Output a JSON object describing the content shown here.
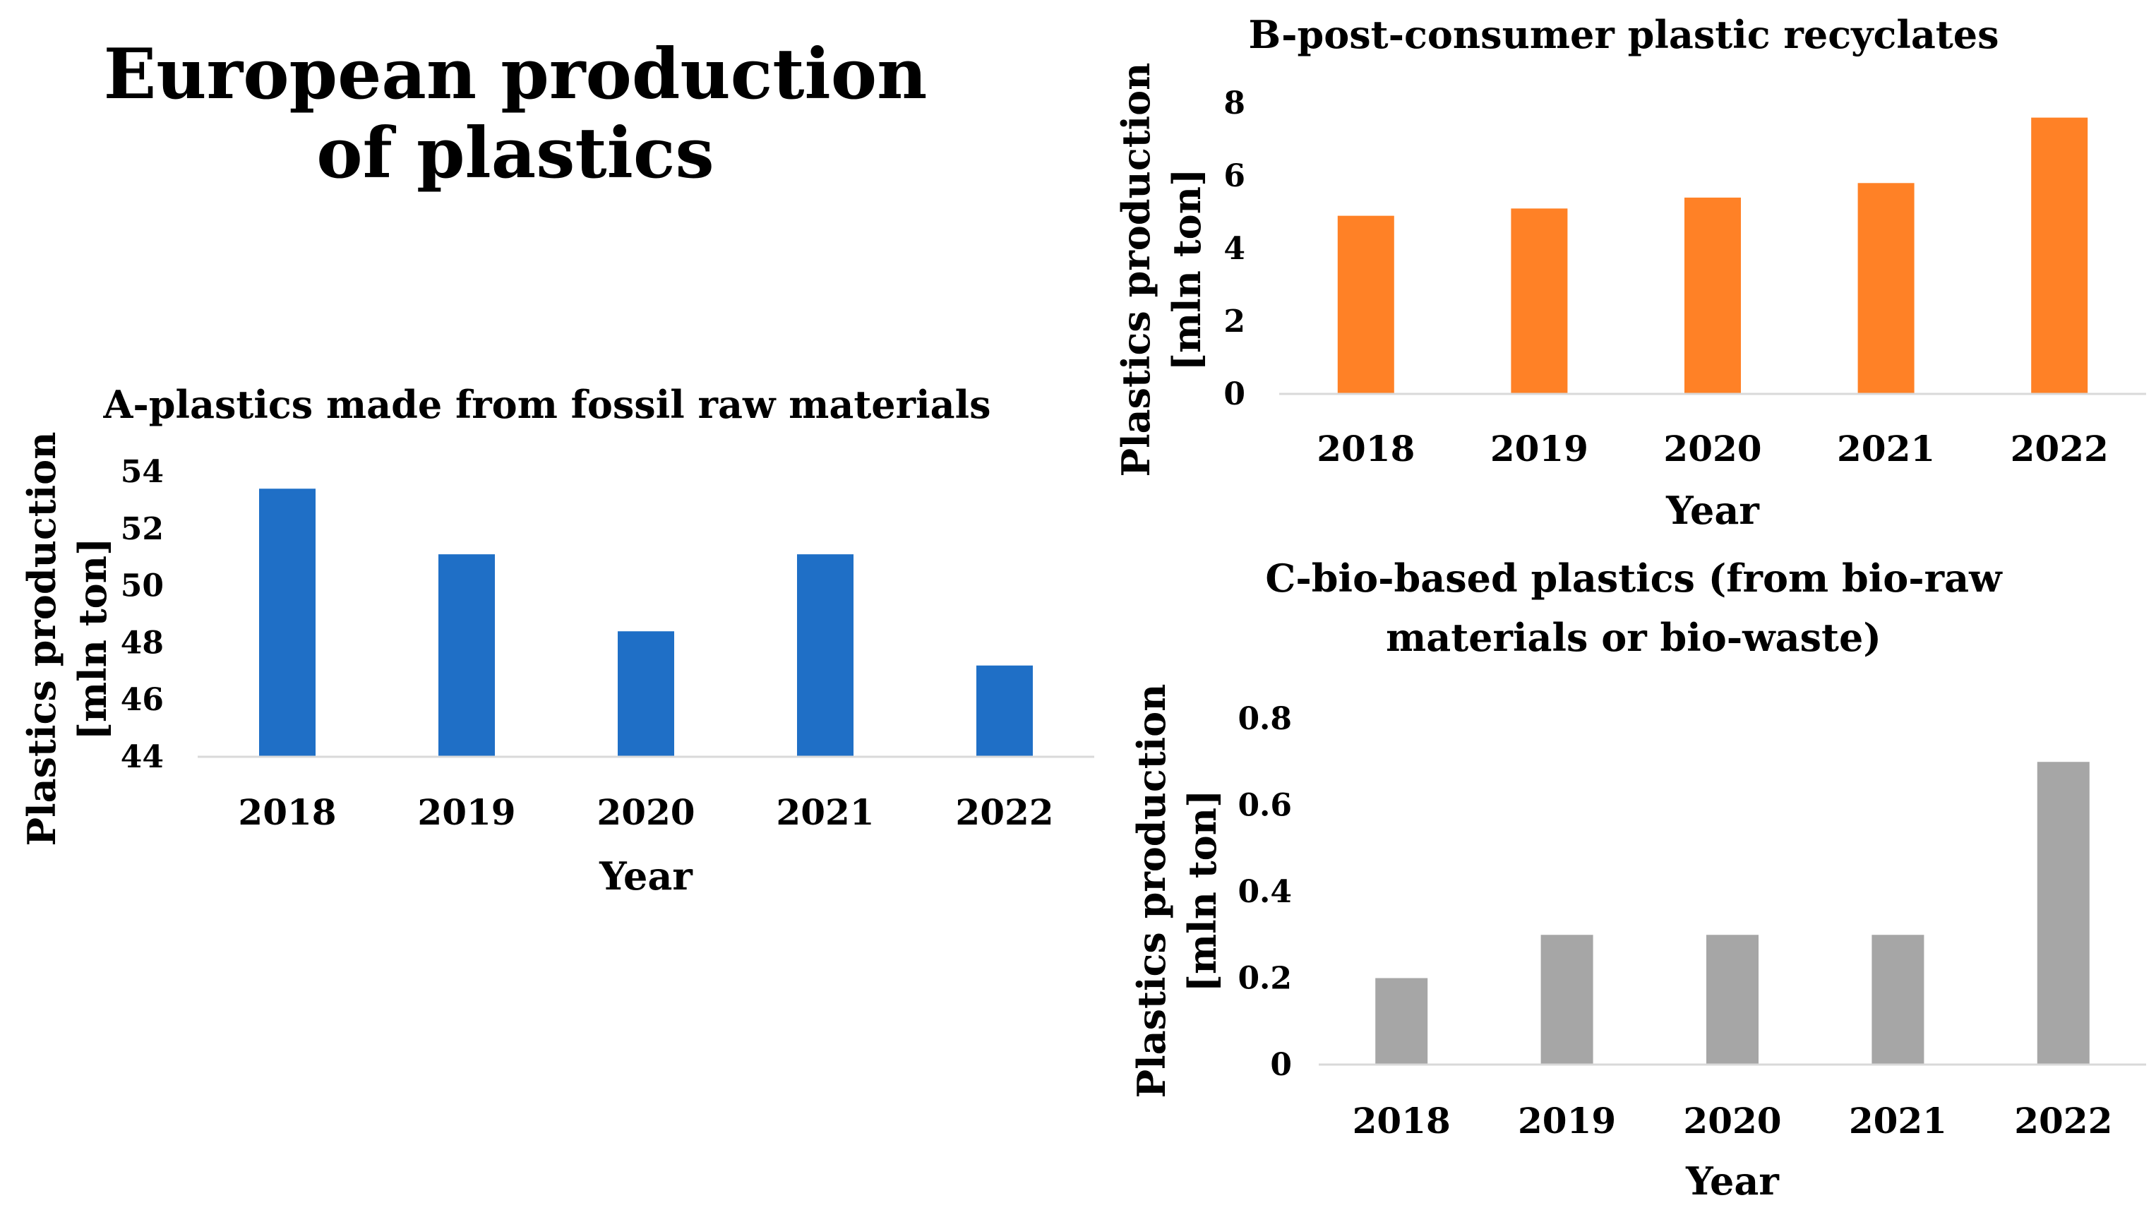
{
  "figure_title": "European production of plastics",
  "chart_data": [
    {
      "id": "A",
      "type": "bar",
      "title": "A-plastics made from fossil raw materials",
      "categories": [
        "2018",
        "2019",
        "2020",
        "2021",
        "2022"
      ],
      "values": [
        53.4,
        51.1,
        48.4,
        51.1,
        47.2
      ],
      "ylim": [
        44,
        54
      ],
      "yticks": [
        "44",
        "46",
        "48",
        "50",
        "52",
        "54"
      ],
      "xlabel": "Year",
      "ylabel": [
        "Plastics production",
        "[mln ton]"
      ],
      "color": "#1f6fc6",
      "grid": false
    },
    {
      "id": "B",
      "type": "bar",
      "title": "B-post-consumer plastic recyclates",
      "categories": [
        "2018",
        "2019",
        "2020",
        "2021",
        "2022"
      ],
      "values": [
        4.9,
        5.1,
        5.4,
        5.8,
        7.6
      ],
      "ylim": [
        0,
        8
      ],
      "yticks": [
        "0",
        "2",
        "4",
        "6",
        "8"
      ],
      "xlabel": "Year",
      "ylabel": [
        "Plastics production",
        "[mln ton]"
      ],
      "color": "#ff8126",
      "grid": false
    },
    {
      "id": "C",
      "type": "bar",
      "title": [
        "C-bio-based plastics (from bio-raw",
        "materials or bio-waste)"
      ],
      "categories": [
        "2018",
        "2019",
        "2020",
        "2021",
        "2022"
      ],
      "values": [
        0.2,
        0.3,
        0.3,
        0.3,
        0.7
      ],
      "ylim": [
        0,
        0.8
      ],
      "yticks": [
        "0",
        "0.2",
        "0.4",
        "0.6",
        "0.8"
      ],
      "xlabel": "Year",
      "ylabel": [
        "Plastics production",
        "[mln ton]"
      ],
      "color": "#a6a6a6",
      "grid": false
    }
  ]
}
